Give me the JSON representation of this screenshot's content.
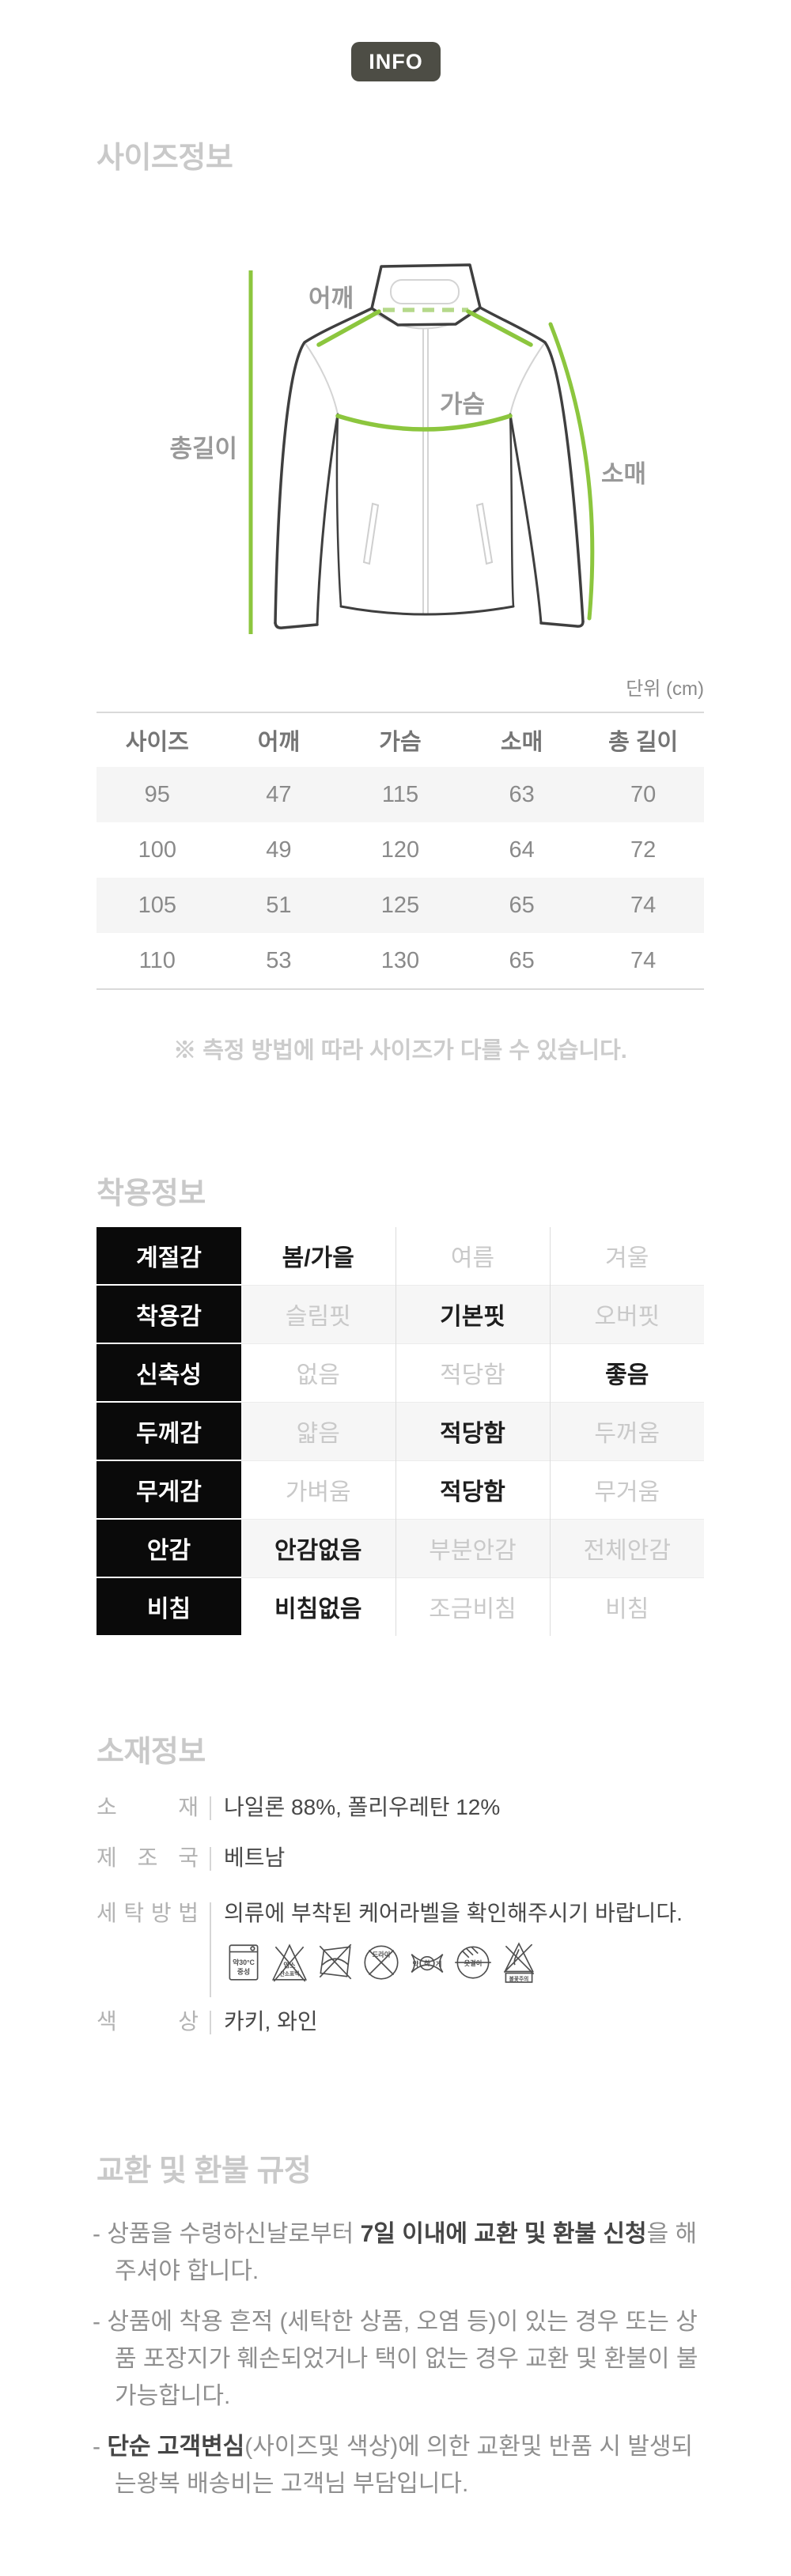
{
  "badge": {
    "label": "INFO"
  },
  "sections": {
    "size": {
      "title": "사이즈정보",
      "unit": "단위 (cm)",
      "diagram_labels": {
        "shoulder": "어깨",
        "chest": "가슴",
        "length": "총길이",
        "sleeve": "소매"
      },
      "table": {
        "headers": [
          "사이즈",
          "어깨",
          "가슴",
          "소매",
          "총 길이"
        ],
        "rows": [
          [
            "95",
            "47",
            "115",
            "63",
            "70"
          ],
          [
            "100",
            "49",
            "120",
            "64",
            "72"
          ],
          [
            "105",
            "51",
            "125",
            "65",
            "74"
          ],
          [
            "110",
            "53",
            "130",
            "65",
            "74"
          ]
        ]
      },
      "note": "※ 측정 방법에 따라 사이즈가 다를 수 있습니다."
    },
    "wear": {
      "title": "착용정보",
      "rows": [
        {
          "label": "계절감",
          "options": [
            "봄/가을",
            "여름",
            "겨울"
          ],
          "selected": 0
        },
        {
          "label": "착용감",
          "options": [
            "슬림핏",
            "기본핏",
            "오버핏"
          ],
          "selected": 1
        },
        {
          "label": "신축성",
          "options": [
            "없음",
            "적당함",
            "좋음"
          ],
          "selected": 2
        },
        {
          "label": "두께감",
          "options": [
            "얇음",
            "적당함",
            "두꺼움"
          ],
          "selected": 1
        },
        {
          "label": "무게감",
          "options": [
            "가벼움",
            "적당함",
            "무거움"
          ],
          "selected": 1
        },
        {
          "label": "안감",
          "options": [
            "안감없음",
            "부분안감",
            "전체안감"
          ],
          "selected": 0
        },
        {
          "label": "비침",
          "options": [
            "비침없음",
            "조금비침",
            "비침"
          ],
          "selected": 0
        }
      ]
    },
    "material": {
      "title": "소재정보",
      "rows": [
        {
          "label": "소재",
          "value": "나일론 88%, 폴리우레탄 12%",
          "icons": false
        },
        {
          "label": "제조국",
          "value": "베트남",
          "icons": false
        },
        {
          "label": "세탁방법",
          "value": "의류에 부착된 케어라벨을 확인해주시기 바랍니다.",
          "icons": true
        },
        {
          "label": "색상",
          "value": "카키, 와인",
          "icons": false
        }
      ],
      "care_icons": [
        {
          "name": "wash-30c-icon",
          "labels": [
            "약30°C",
            "중성"
          ]
        },
        {
          "name": "no-bleach-icon",
          "labels": [
            "염소",
            "산소표백"
          ]
        },
        {
          "name": "no-wring-icon",
          "labels": []
        },
        {
          "name": "no-dryclean-icon",
          "labels": [
            "드라이"
          ]
        },
        {
          "name": "wring-weak-icon",
          "labels": [
            "약",
            "하",
            "게"
          ]
        },
        {
          "name": "hanger-dry-icon",
          "labels": [
            "옷걸이"
          ]
        },
        {
          "name": "no-flame-icon",
          "labels": [
            "불꽃주의"
          ]
        }
      ]
    },
    "policy": {
      "title": "교환 및 환불 규정",
      "marker": "-",
      "bullets": [
        {
          "segments": [
            {
              "text": "상품을 수령하신날로부터 ",
              "bold": false
            },
            {
              "text": "7일 이내에 교환 및 환불 신청",
              "bold": true
            },
            {
              "text": "을 해주셔야 합니다.",
              "bold": false
            }
          ]
        },
        {
          "segments": [
            {
              "text": "상품에 착용 흔적 (세탁한 상품, 오염 등)이 있는 경우 또는 상품 포장지가 훼손되었거나 택이 없는 경우 교환 및 환불이 불가능합니다.",
              "bold": false
            }
          ]
        },
        {
          "segments": [
            {
              "text": "단순 고객변심",
              "bold": true
            },
            {
              "text": "(사이즈및 색상)에 의한 교환및 반품 시 발생되는왕복 배송비는 고객님 부담입니다.",
              "bold": false
            }
          ]
        }
      ]
    }
  },
  "colors": {
    "accent_green": "#8cc63e",
    "dashed_green": "#b5d98b",
    "badge_bg": "#4d4d45",
    "table_alt_row": "#f5f5f5",
    "wear_label_bg": "#0a0a0a",
    "heading_gray": "#c9c9c9"
  }
}
